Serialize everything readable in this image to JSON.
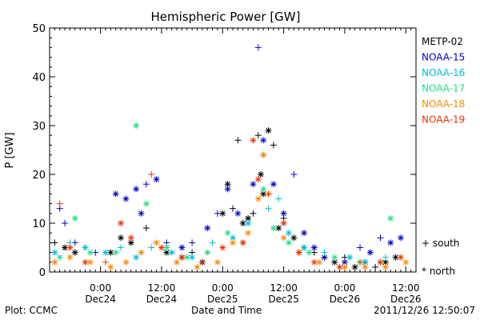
{
  "footer": {
    "plot_source": "Plot: CCMC",
    "xlabel": "Date and Time",
    "timestamp": "2011/12/26 12:50:07"
  },
  "chart_data": {
    "type": "scatter",
    "title": "Hemispheric Power [GW]",
    "ylabel": "P [GW]",
    "xlabel": "Date and Time",
    "xlim": [
      "2011-12-23 14:00",
      "2011-12-26 14:00"
    ],
    "ylim": [
      0,
      50
    ],
    "yticks": [
      0,
      10,
      20,
      30,
      40,
      50
    ],
    "xticks": [
      {
        "time": "2011-12-24 00:00",
        "line1": "0:00",
        "line2": "Dec24"
      },
      {
        "time": "2011-12-24 12:00",
        "line1": "12:00",
        "line2": "Dec24"
      },
      {
        "time": "2011-12-25 00:00",
        "line1": "0:00",
        "line2": "Dec25"
      },
      {
        "time": "2011-12-25 12:00",
        "line1": "12:00",
        "line2": "Dec25"
      },
      {
        "time": "2011-12-26 00:00",
        "line1": "0:00",
        "line2": "Dec26"
      },
      {
        "time": "2011-12-26 12:00",
        "line1": "12:00",
        "line2": "Dec26"
      }
    ],
    "grid": false,
    "legend_position": "right",
    "marker_legend": [
      {
        "symbol": "+",
        "label": "south"
      },
      {
        "symbol": "*",
        "label": "north"
      }
    ],
    "series": [
      {
        "name": "METP-02",
        "color": "#000000",
        "points": [
          {
            "t": "2011-12-23 15:00",
            "p": 6,
            "m": "south"
          },
          {
            "t": "2011-12-23 17:00",
            "p": 5,
            "m": "north"
          },
          {
            "t": "2011-12-23 19:00",
            "p": 4,
            "m": "north"
          },
          {
            "t": "2011-12-23 21:00",
            "p": 5,
            "m": "south"
          },
          {
            "t": "2011-12-24 02:00",
            "p": 4,
            "m": "north"
          },
          {
            "t": "2011-12-24 04:00",
            "p": 7,
            "m": "north"
          },
          {
            "t": "2011-12-24 06:00",
            "p": 6,
            "m": "north"
          },
          {
            "t": "2011-12-24 09:00",
            "p": 9,
            "m": "south"
          },
          {
            "t": "2011-12-24 13:00",
            "p": 4,
            "m": "north"
          },
          {
            "t": "2011-12-24 16:00",
            "p": 3,
            "m": "north"
          },
          {
            "t": "2011-12-24 18:00",
            "p": 4,
            "m": "south"
          },
          {
            "t": "2011-12-24 20:00",
            "p": 2,
            "m": "north"
          },
          {
            "t": "2011-12-25 00:00",
            "p": 12,
            "m": "north"
          },
          {
            "t": "2011-12-25 01:00",
            "p": 18,
            "m": "north"
          },
          {
            "t": "2011-12-25 02:00",
            "p": 13,
            "m": "south"
          },
          {
            "t": "2011-12-25 03:00",
            "p": 27,
            "m": "south"
          },
          {
            "t": "2011-12-25 04:00",
            "p": 10,
            "m": "north"
          },
          {
            "t": "2011-12-25 05:00",
            "p": 11,
            "m": "north"
          },
          {
            "t": "2011-12-25 06:00",
            "p": 12,
            "m": "south"
          },
          {
            "t": "2011-12-25 07:00",
            "p": 28,
            "m": "south"
          },
          {
            "t": "2011-12-25 07:30",
            "p": 20,
            "m": "north"
          },
          {
            "t": "2011-12-25 08:00",
            "p": 16,
            "m": "north"
          },
          {
            "t": "2011-12-25 09:00",
            "p": 29,
            "m": "north"
          },
          {
            "t": "2011-12-25 10:00",
            "p": 26,
            "m": "south"
          },
          {
            "t": "2011-12-25 11:00",
            "p": 9,
            "m": "north"
          },
          {
            "t": "2011-12-25 12:00",
            "p": 11,
            "m": "south"
          },
          {
            "t": "2011-12-25 14:00",
            "p": 7,
            "m": "north"
          },
          {
            "t": "2011-12-25 16:00",
            "p": 5,
            "m": "north"
          },
          {
            "t": "2011-12-25 18:00",
            "p": 4,
            "m": "south"
          },
          {
            "t": "2011-12-25 20:00",
            "p": 3,
            "m": "north"
          },
          {
            "t": "2011-12-25 22:00",
            "p": 2,
            "m": "north"
          },
          {
            "t": "2011-12-26 00:00",
            "p": 3,
            "m": "south"
          },
          {
            "t": "2011-12-26 02:00",
            "p": 1,
            "m": "north"
          },
          {
            "t": "2011-12-26 04:00",
            "p": 2,
            "m": "north"
          },
          {
            "t": "2011-12-26 06:00",
            "p": 1,
            "m": "south"
          },
          {
            "t": "2011-12-26 08:00",
            "p": 2,
            "m": "north"
          },
          {
            "t": "2011-12-26 10:00",
            "p": 3,
            "m": "north"
          }
        ]
      },
      {
        "name": "NOAA-15",
        "color": "#0000cc",
        "points": [
          {
            "t": "2011-12-23 16:00",
            "p": 13,
            "m": "south"
          },
          {
            "t": "2011-12-23 17:00",
            "p": 10,
            "m": "south"
          },
          {
            "t": "2011-12-23 19:00",
            "p": 6,
            "m": "south"
          },
          {
            "t": "2011-12-23 23:00",
            "p": 4,
            "m": "south"
          },
          {
            "t": "2011-12-24 03:00",
            "p": 16,
            "m": "north"
          },
          {
            "t": "2011-12-24 05:00",
            "p": 15,
            "m": "north"
          },
          {
            "t": "2011-12-24 07:00",
            "p": 17,
            "m": "north"
          },
          {
            "t": "2011-12-24 08:00",
            "p": 12,
            "m": "north"
          },
          {
            "t": "2011-12-24 09:00",
            "p": 18,
            "m": "south"
          },
          {
            "t": "2011-12-24 11:00",
            "p": 19,
            "m": "north"
          },
          {
            "t": "2011-12-24 13:00",
            "p": 6,
            "m": "south"
          },
          {
            "t": "2011-12-24 16:00",
            "p": 5,
            "m": "north"
          },
          {
            "t": "2011-12-24 18:00",
            "p": 6,
            "m": "south"
          },
          {
            "t": "2011-12-24 21:00",
            "p": 9,
            "m": "north"
          },
          {
            "t": "2011-12-24 23:00",
            "p": 12,
            "m": "south"
          },
          {
            "t": "2011-12-25 01:00",
            "p": 17,
            "m": "north"
          },
          {
            "t": "2011-12-25 03:00",
            "p": 12,
            "m": "north"
          },
          {
            "t": "2011-12-25 06:00",
            "p": 18,
            "m": "north"
          },
          {
            "t": "2011-12-25 07:00",
            "p": 46,
            "m": "south"
          },
          {
            "t": "2011-12-25 08:00",
            "p": 27,
            "m": "north"
          },
          {
            "t": "2011-12-25 10:00",
            "p": 18,
            "m": "north"
          },
          {
            "t": "2011-12-25 12:00",
            "p": 12,
            "m": "north"
          },
          {
            "t": "2011-12-25 14:00",
            "p": 20,
            "m": "south"
          },
          {
            "t": "2011-12-25 16:00",
            "p": 8,
            "m": "north"
          },
          {
            "t": "2011-12-25 18:00",
            "p": 5,
            "m": "north"
          },
          {
            "t": "2011-12-25 20:00",
            "p": 3,
            "m": "south"
          },
          {
            "t": "2011-12-26 00:00",
            "p": 2,
            "m": "north"
          },
          {
            "t": "2011-12-26 03:00",
            "p": 5,
            "m": "south"
          },
          {
            "t": "2011-12-26 05:00",
            "p": 4,
            "m": "north"
          },
          {
            "t": "2011-12-26 07:00",
            "p": 7,
            "m": "south"
          },
          {
            "t": "2011-12-26 09:00",
            "p": 6,
            "m": "north"
          },
          {
            "t": "2011-12-26 11:00",
            "p": 7,
            "m": "north"
          }
        ]
      },
      {
        "name": "NOAA-16",
        "color": "#00bbdd",
        "points": [
          {
            "t": "2011-12-23 15:00",
            "p": 4,
            "m": "north"
          },
          {
            "t": "2011-12-23 18:00",
            "p": 6,
            "m": "south"
          },
          {
            "t": "2011-12-23 21:00",
            "p": 5,
            "m": "north"
          },
          {
            "t": "2011-12-24 01:00",
            "p": 4,
            "m": "north"
          },
          {
            "t": "2011-12-24 04:00",
            "p": 5,
            "m": "south"
          },
          {
            "t": "2011-12-24 07:00",
            "p": 3,
            "m": "north"
          },
          {
            "t": "2011-12-24 10:00",
            "p": 5,
            "m": "south"
          },
          {
            "t": "2011-12-24 14:00",
            "p": 4,
            "m": "north"
          },
          {
            "t": "2011-12-24 18:00",
            "p": 3,
            "m": "north"
          },
          {
            "t": "2011-12-24 22:00",
            "p": 6,
            "m": "south"
          },
          {
            "t": "2011-12-25 02:00",
            "p": 7,
            "m": "north"
          },
          {
            "t": "2011-12-25 05:00",
            "p": 10,
            "m": "north"
          },
          {
            "t": "2011-12-25 08:00",
            "p": 24,
            "m": "north"
          },
          {
            "t": "2011-12-25 09:00",
            "p": 13,
            "m": "south"
          },
          {
            "t": "2011-12-25 11:00",
            "p": 15,
            "m": "south"
          },
          {
            "t": "2011-12-25 13:00",
            "p": 8,
            "m": "north"
          },
          {
            "t": "2011-12-25 16:00",
            "p": 5,
            "m": "north"
          },
          {
            "t": "2011-12-25 20:00",
            "p": 4,
            "m": "south"
          },
          {
            "t": "2011-12-26 01:00",
            "p": 3,
            "m": "north"
          },
          {
            "t": "2011-12-26 04:00",
            "p": 2,
            "m": "north"
          },
          {
            "t": "2011-12-26 08:00",
            "p": 3,
            "m": "south"
          }
        ]
      },
      {
        "name": "NOAA-17",
        "color": "#22dd88",
        "points": [
          {
            "t": "2011-12-23 16:00",
            "p": 3,
            "m": "north"
          },
          {
            "t": "2011-12-23 19:00",
            "p": 11,
            "m": "north"
          },
          {
            "t": "2011-12-23 22:00",
            "p": 4,
            "m": "north"
          },
          {
            "t": "2011-12-24 03:00",
            "p": 4,
            "m": "north"
          },
          {
            "t": "2011-12-24 07:00",
            "p": 30,
            "m": "north"
          },
          {
            "t": "2011-12-24 09:00",
            "p": 14,
            "m": "north"
          },
          {
            "t": "2011-12-24 13:00",
            "p": 5,
            "m": "north"
          },
          {
            "t": "2011-12-24 17:00",
            "p": 3,
            "m": "north"
          },
          {
            "t": "2011-12-24 21:00",
            "p": 4,
            "m": "north"
          },
          {
            "t": "2011-12-25 01:00",
            "p": 8,
            "m": "north"
          },
          {
            "t": "2011-12-25 04:00",
            "p": 6,
            "m": "north"
          },
          {
            "t": "2011-12-25 08:00",
            "p": 17,
            "m": "north"
          },
          {
            "t": "2011-12-25 10:00",
            "p": 9,
            "m": "north"
          },
          {
            "t": "2011-12-25 13:00",
            "p": 6,
            "m": "north"
          },
          {
            "t": "2011-12-25 17:00",
            "p": 4,
            "m": "north"
          },
          {
            "t": "2011-12-25 22:00",
            "p": 3,
            "m": "north"
          },
          {
            "t": "2011-12-26 03:00",
            "p": 2,
            "m": "north"
          },
          {
            "t": "2011-12-26 07:00",
            "p": 2,
            "m": "north"
          },
          {
            "t": "2011-12-26 09:00",
            "p": 11,
            "m": "north"
          }
        ]
      },
      {
        "name": "NOAA-18",
        "color": "#ff8800",
        "points": [
          {
            "t": "2011-12-23 15:00",
            "p": 2,
            "m": "north"
          },
          {
            "t": "2011-12-23 18:00",
            "p": 3,
            "m": "north"
          },
          {
            "t": "2011-12-23 22:00",
            "p": 2,
            "m": "north"
          },
          {
            "t": "2011-12-24 02:00",
            "p": 1,
            "m": "north"
          },
          {
            "t": "2011-12-24 05:00",
            "p": 2,
            "m": "north"
          },
          {
            "t": "2011-12-24 08:00",
            "p": 4,
            "m": "north"
          },
          {
            "t": "2011-12-24 11:00",
            "p": 6,
            "m": "north"
          },
          {
            "t": "2011-12-24 15:00",
            "p": 2,
            "m": "north"
          },
          {
            "t": "2011-12-24 19:00",
            "p": 1,
            "m": "north"
          },
          {
            "t": "2011-12-24 23:00",
            "p": 2,
            "m": "north"
          },
          {
            "t": "2011-12-25 02:00",
            "p": 6,
            "m": "north"
          },
          {
            "t": "2011-12-25 05:00",
            "p": 8,
            "m": "north"
          },
          {
            "t": "2011-12-25 07:00",
            "p": 15,
            "m": "north"
          },
          {
            "t": "2011-12-25 08:00",
            "p": 24,
            "m": "north"
          },
          {
            "t": "2011-12-25 09:00",
            "p": 16,
            "m": "north"
          },
          {
            "t": "2011-12-25 12:00",
            "p": 7,
            "m": "north"
          },
          {
            "t": "2011-12-25 15:00",
            "p": 4,
            "m": "north"
          },
          {
            "t": "2011-12-25 19:00",
            "p": 2,
            "m": "north"
          },
          {
            "t": "2011-12-26 00:00",
            "p": 1,
            "m": "north"
          },
          {
            "t": "2011-12-26 04:00",
            "p": 1,
            "m": "north"
          },
          {
            "t": "2011-12-26 08:00",
            "p": 1,
            "m": "north"
          },
          {
            "t": "2011-12-26 12:00",
            "p": 2,
            "m": "north"
          }
        ]
      },
      {
        "name": "NOAA-19",
        "color": "#ee3300",
        "points": [
          {
            "t": "2011-12-23 16:00",
            "p": 14,
            "m": "south"
          },
          {
            "t": "2011-12-23 18:00",
            "p": 5,
            "m": "north"
          },
          {
            "t": "2011-12-23 21:00",
            "p": 2,
            "m": "north"
          },
          {
            "t": "2011-12-24 01:00",
            "p": 2,
            "m": "south"
          },
          {
            "t": "2011-12-24 04:00",
            "p": 10,
            "m": "north"
          },
          {
            "t": "2011-12-24 06:00",
            "p": 7,
            "m": "north"
          },
          {
            "t": "2011-12-24 10:00",
            "p": 20,
            "m": "south"
          },
          {
            "t": "2011-12-24 12:00",
            "p": 5,
            "m": "north"
          },
          {
            "t": "2011-12-24 16:00",
            "p": 3,
            "m": "north"
          },
          {
            "t": "2011-12-24 20:00",
            "p": 2,
            "m": "south"
          },
          {
            "t": "2011-12-25 00:00",
            "p": 5,
            "m": "north"
          },
          {
            "t": "2011-12-25 04:00",
            "p": 6,
            "m": "north"
          },
          {
            "t": "2011-12-25 06:00",
            "p": 27,
            "m": "north"
          },
          {
            "t": "2011-12-25 07:00",
            "p": 19,
            "m": "north"
          },
          {
            "t": "2011-12-25 09:00",
            "p": 16,
            "m": "south"
          },
          {
            "t": "2011-12-25 12:00",
            "p": 10,
            "m": "north"
          },
          {
            "t": "2011-12-25 15:00",
            "p": 4,
            "m": "north"
          },
          {
            "t": "2011-12-25 18:00",
            "p": 2,
            "m": "north"
          },
          {
            "t": "2011-12-25 23:00",
            "p": 1,
            "m": "north"
          },
          {
            "t": "2011-12-26 03:00",
            "p": 2,
            "m": "south"
          },
          {
            "t": "2011-12-26 07:00",
            "p": 2,
            "m": "north"
          },
          {
            "t": "2011-12-26 11:00",
            "p": 3,
            "m": "north"
          }
        ]
      }
    ]
  }
}
